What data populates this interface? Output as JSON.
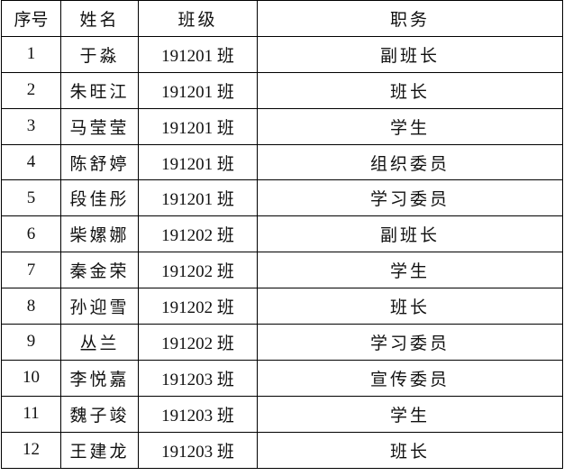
{
  "headers": [
    "序号",
    "姓名",
    "班级",
    "职务"
  ],
  "rows": [
    [
      "1",
      "于淼",
      "191201 班",
      "副班长"
    ],
    [
      "2",
      "朱旺江",
      "191201 班",
      "班长"
    ],
    [
      "3",
      "马莹莹",
      "191201 班",
      "学生"
    ],
    [
      "4",
      "陈舒婷",
      "191201 班",
      "组织委员"
    ],
    [
      "5",
      "段佳彤",
      "191201 班",
      "学习委员"
    ],
    [
      "6",
      "柴嫘娜",
      "191202 班",
      "副班长"
    ],
    [
      "7",
      "秦金荣",
      "191202 班",
      "学生"
    ],
    [
      "8",
      "孙迎雪",
      "191202 班",
      "班长"
    ],
    [
      "9",
      "丛兰",
      "191202 班",
      "学习委员"
    ],
    [
      "10",
      "李悦嘉",
      "191203 班",
      "宣传委员"
    ],
    [
      "11",
      "魏子竣",
      "191203 班",
      "学生"
    ],
    [
      "12",
      "王建龙",
      "191203 班",
      "班长"
    ]
  ]
}
